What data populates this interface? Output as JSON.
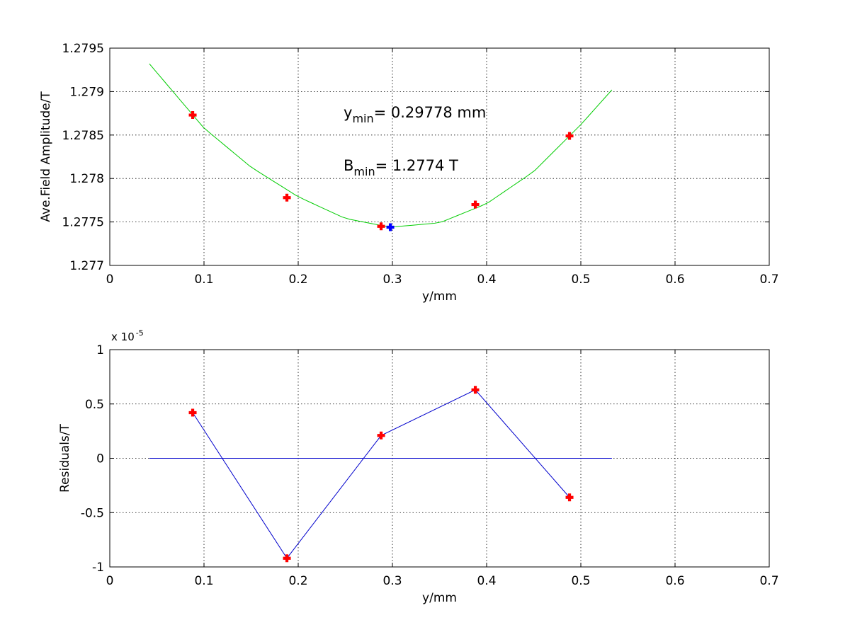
{
  "chart_data": [
    {
      "type": "scatter",
      "xlabel": "y/mm",
      "ylabel": "Ave.Field Amplitude/T",
      "xlim": [
        0,
        0.7
      ],
      "ylim": [
        1.277,
        1.2795
      ],
      "xticks": [
        "0",
        "0.1",
        "0.2",
        "0.3",
        "0.4",
        "0.5",
        "0.6",
        "0.7"
      ],
      "yticks": [
        "1.277",
        "1.2775",
        "1.278",
        "1.2785",
        "1.279",
        "1.2795"
      ],
      "grid": true,
      "series": [
        {
          "kind": "line",
          "color": "#00cc00",
          "x": [
            0.042,
            0.1,
            0.15,
            0.2,
            0.25,
            0.2978,
            0.35,
            0.4,
            0.45,
            0.5,
            0.533
          ],
          "y": [
            1.27932,
            1.27858,
            1.27813,
            1.27779,
            1.27754,
            1.27744,
            1.27749,
            1.27771,
            1.27808,
            1.27862,
            1.27902
          ]
        },
        {
          "kind": "markers",
          "color": "#ff0000",
          "x": [
            0.088,
            0.188,
            0.288,
            0.388,
            0.488
          ],
          "y": [
            1.27873,
            1.27778,
            1.27745,
            1.2777,
            1.27849
          ]
        },
        {
          "kind": "markers",
          "color": "#0000ff",
          "x": [
            0.2978
          ],
          "y": [
            1.27744
          ]
        }
      ],
      "annotations": [
        {
          "base": "y",
          "sub": "min",
          "text": "= 0.29778 mm"
        },
        {
          "base": "B",
          "sub": "min",
          "text": "= 1.2774 T"
        }
      ]
    },
    {
      "type": "line",
      "xlabel": "y/mm",
      "ylabel": "Residuals/T",
      "xlim": [
        0,
        0.7
      ],
      "ylim": [
        -1,
        1
      ],
      "xticks": [
        "0",
        "0.1",
        "0.2",
        "0.3",
        "0.4",
        "0.5",
        "0.6",
        "0.7"
      ],
      "yticks": [
        "-1",
        "-0.5",
        "0",
        "0.5",
        "1"
      ],
      "multiplier": {
        "base": "x 10",
        "exp": "-5"
      },
      "grid": true,
      "series": [
        {
          "kind": "line",
          "color": "#0000cc",
          "x": [
            0.042,
            0.533
          ],
          "y": [
            0,
            0
          ]
        },
        {
          "kind": "line+markers",
          "color": "#0000cc",
          "marker_color": "#ff0000",
          "x": [
            0.088,
            0.188,
            0.288,
            0.388,
            0.488
          ],
          "y": [
            0.42,
            -0.92,
            0.21,
            0.63,
            -0.36
          ]
        }
      ]
    }
  ]
}
